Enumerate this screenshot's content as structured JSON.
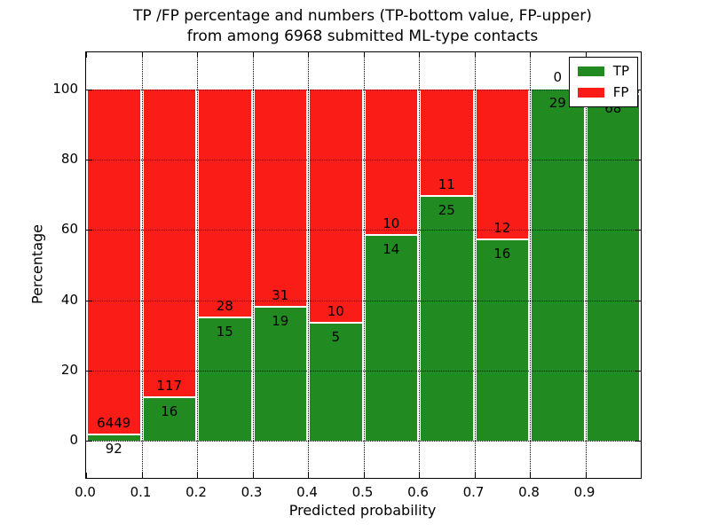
{
  "title": {
    "line1": "TP /FP percentage and numbers (TP-bottom value, FP-upper)",
    "line2": "from among 6968 submitted ML-type contacts"
  },
  "axes": {
    "ylabel": "Percentage",
    "xlabel": "Predicted probability",
    "yticks": [
      0,
      20,
      40,
      60,
      80,
      100
    ],
    "xticks": [
      "0.0",
      "0.1",
      "0.2",
      "0.3",
      "0.4",
      "0.5",
      "0.6",
      "0.7",
      "0.8",
      "0.9"
    ]
  },
  "legend": {
    "items": [
      {
        "label": "TP",
        "color": "#218a21"
      },
      {
        "label": "FP",
        "color": "#fa1d17"
      }
    ]
  },
  "colors": {
    "tp": "#218a21",
    "fp": "#fa1d17",
    "grid": "#000000",
    "frame": "#000000",
    "background": "#ffffff"
  },
  "chart_data": {
    "type": "bar",
    "stacked": true,
    "normalized_to_percent": true,
    "title": "TP /FP percentage and numbers (TP-bottom value, FP-upper) from among 6968 submitted ML-type contacts",
    "xlabel": "Predicted probability",
    "ylabel": "Percentage",
    "xlim": [
      0,
      1
    ],
    "ylim": [
      -10.6,
      110.6
    ],
    "grid": true,
    "legend_position": "upper right",
    "categories": [
      "0.0-0.1",
      "0.1-0.2",
      "0.2-0.3",
      "0.3-0.4",
      "0.4-0.5",
      "0.5-0.6",
      "0.6-0.7",
      "0.7-0.8",
      "0.8-0.9",
      "0.9-1.0"
    ],
    "series": [
      {
        "name": "TP",
        "counts": [
          92,
          16,
          15,
          19,
          5,
          14,
          25,
          16,
          29,
          68
        ]
      },
      {
        "name": "FP",
        "counts": [
          6449,
          117,
          28,
          31,
          10,
          10,
          11,
          12,
          0,
          1
        ]
      }
    ],
    "tp_percent": [
      1.41,
      12.03,
      34.88,
      38.0,
      33.33,
      58.33,
      69.44,
      57.14,
      100.0,
      98.55
    ],
    "fp_percent": [
      98.59,
      87.97,
      65.12,
      62.0,
      66.67,
      41.67,
      30.56,
      42.86,
      0.0,
      1.45
    ],
    "value_labels": {
      "fp": [
        "6449",
        "117",
        "28",
        "31",
        "10",
        "10",
        "11",
        "12",
        "0",
        ""
      ],
      "tp": [
        "92",
        "16",
        "15",
        "19",
        "5",
        "14",
        "25",
        "16",
        "29",
        "68"
      ]
    },
    "last_bar_fp_label_hidden_by_legend": true
  }
}
